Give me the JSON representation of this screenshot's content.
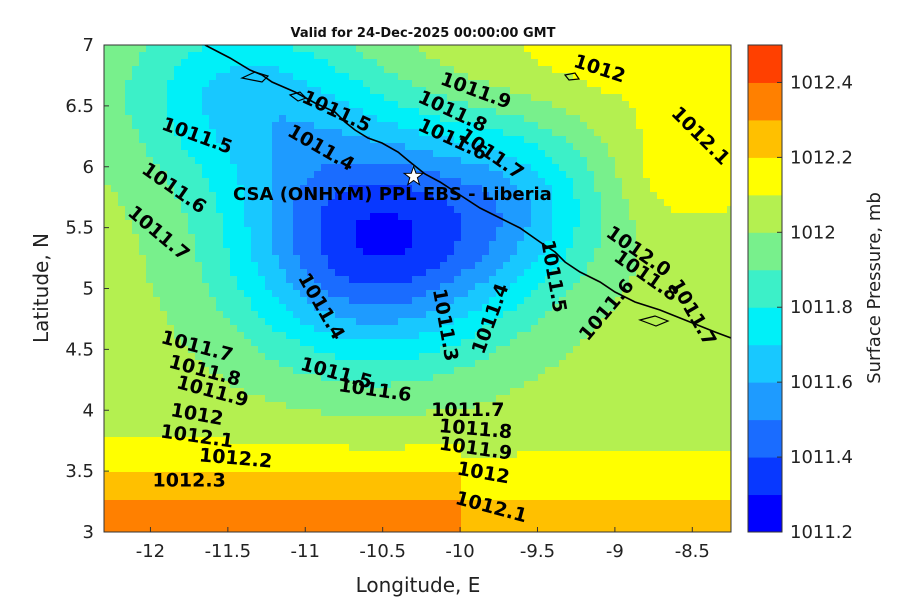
{
  "chart_data": {
    "type": "contour",
    "title": "Valid for 24-Dec-2025 00:00:00 GMT",
    "xlabel": "Longitude, E",
    "ylabel": "Latitude, N",
    "colorbar_label": "Surface Pressure, mb",
    "xlim": [
      -12.3,
      -8.25
    ],
    "ylim": [
      3,
      7
    ],
    "xticks": [
      -12,
      -11.5,
      -11,
      -10.5,
      -10,
      -9.5,
      -9,
      -8.5
    ],
    "xtick_labels": [
      "-12",
      "-11.5",
      "-11",
      "-10.5",
      "-10",
      "-9.5",
      "-9",
      "-8.5"
    ],
    "yticks": [
      3,
      3.5,
      4,
      4.5,
      5,
      5.5,
      6,
      6.5,
      7
    ],
    "ytick_labels": [
      "3",
      "3.5",
      "4",
      "4.5",
      "5",
      "5.5",
      "6",
      "6.5",
      "7"
    ],
    "colorbar": {
      "range": [
        1011.2,
        1012.5
      ],
      "ticks": [
        1011.2,
        1011.4,
        1011.6,
        1011.8,
        1012,
        1012.2,
        1012.4
      ],
      "tick_labels": [
        "1011.2",
        "1011.4",
        "1011.6",
        "1011.8",
        "1012",
        "1012.2",
        "1012.4"
      ],
      "levels": [
        1011.2,
        1011.3,
        1011.4,
        1011.5,
        1011.6,
        1011.7,
        1011.8,
        1011.9,
        1012.0,
        1012.1,
        1012.2,
        1012.3,
        1012.4,
        1012.5
      ],
      "colors": [
        "#0000b4",
        "#0000ff",
        "#0838ff",
        "#1a6cff",
        "#1e9bff",
        "#18c8ff",
        "#00f0f8",
        "#3cf0c8",
        "#78f08c",
        "#b4f050",
        "#ffff00",
        "#ffc000",
        "#ff8000",
        "#ff4000",
        "#ff0000"
      ]
    },
    "contour_labels": [
      {
        "text": "1012",
        "lon": -9.1,
        "lat": 6.8,
        "angle": 18
      },
      {
        "text": "1011.9",
        "lon": -9.9,
        "lat": 6.62,
        "angle": 20
      },
      {
        "text": "1011.8",
        "lon": -10.05,
        "lat": 6.45,
        "angle": 25
      },
      {
        "text": "1011.6",
        "lon": -10.05,
        "lat": 6.22,
        "angle": 25
      },
      {
        "text": "1011.7",
        "lon": -9.8,
        "lat": 6.1,
        "angle": 35
      },
      {
        "text": "1011.5",
        "lon": -10.8,
        "lat": 6.45,
        "angle": 25
      },
      {
        "text": "1011.4",
        "lon": -10.9,
        "lat": 6.15,
        "angle": 30
      },
      {
        "text": "1011.5",
        "lon": -11.7,
        "lat": 6.25,
        "angle": 20
      },
      {
        "text": "1011.6",
        "lon": -11.85,
        "lat": 5.82,
        "angle": 35
      },
      {
        "text": "1011.7",
        "lon": -11.95,
        "lat": 5.45,
        "angle": 40
      },
      {
        "text": "1012.1",
        "lon": -8.45,
        "lat": 6.25,
        "angle": 45
      },
      {
        "text": "1012.0",
        "lon": -8.85,
        "lat": 5.3,
        "angle": 35
      },
      {
        "text": "1011.8",
        "lon": -8.8,
        "lat": 5.1,
        "angle": 35
      },
      {
        "text": "1011.7",
        "lon": -8.5,
        "lat": 4.8,
        "angle": 60
      },
      {
        "text": "1011.6",
        "lon": -9.05,
        "lat": 4.82,
        "angle": -50
      },
      {
        "text": "1011.5",
        "lon": -9.4,
        "lat": 5.1,
        "angle": 80
      },
      {
        "text": "1011.4",
        "lon": -9.8,
        "lat": 4.75,
        "angle": -70
      },
      {
        "text": "1011.3",
        "lon": -10.1,
        "lat": 4.7,
        "angle": 80
      },
      {
        "text": "1011.4",
        "lon": -10.9,
        "lat": 4.85,
        "angle": 60
      },
      {
        "text": "1011.5",
        "lon": -10.8,
        "lat": 4.3,
        "angle": 15
      },
      {
        "text": "1011.6",
        "lon": -10.55,
        "lat": 4.16,
        "angle": 8
      },
      {
        "text": "1011.7",
        "lon": -11.7,
        "lat": 4.52,
        "angle": 15
      },
      {
        "text": "1011.8",
        "lon": -11.65,
        "lat": 4.32,
        "angle": 15
      },
      {
        "text": "1011.9",
        "lon": -11.6,
        "lat": 4.15,
        "angle": 15
      },
      {
        "text": "1012",
        "lon": -11.7,
        "lat": 3.96,
        "angle": 10
      },
      {
        "text": "1012.1",
        "lon": -11.7,
        "lat": 3.78,
        "angle": 8
      },
      {
        "text": "1012.2",
        "lon": -11.45,
        "lat": 3.6,
        "angle": 5
      },
      {
        "text": "1012.3",
        "lon": -11.75,
        "lat": 3.42,
        "angle": 0
      },
      {
        "text": "1011.7",
        "lon": -9.95,
        "lat": 4.0,
        "angle": 0
      },
      {
        "text": "1011.8",
        "lon": -9.9,
        "lat": 3.84,
        "angle": 5
      },
      {
        "text": "1011.9",
        "lon": -9.9,
        "lat": 3.68,
        "angle": 8
      },
      {
        "text": "1012",
        "lon": -9.85,
        "lat": 3.48,
        "angle": 10
      },
      {
        "text": "1012.1",
        "lon": -9.8,
        "lat": 3.2,
        "angle": 15
      }
    ],
    "site": {
      "name": "CSA (ONHYM) PPL EBS  - Liberia",
      "lon": -10.3,
      "lat": 5.92,
      "marker": "white-star"
    }
  }
}
